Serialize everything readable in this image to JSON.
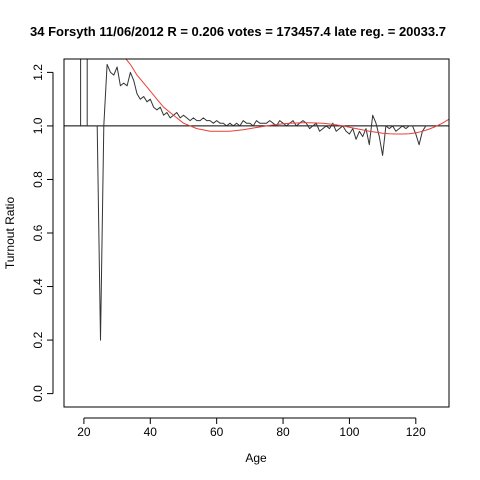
{
  "chart_data": {
    "type": "line",
    "title": "34 Forsyth 11/06/2012 R = 0.206 votes = 173457.4 late reg. = 20033.7",
    "xlabel": "Age",
    "ylabel": "Turnout Ratio",
    "xlim": [
      14,
      130
    ],
    "ylim": [
      -0.05,
      1.25
    ],
    "x_ticks": [
      20,
      40,
      60,
      80,
      100,
      120
    ],
    "x_tick_labels": [
      "20",
      "40",
      "60",
      "80",
      "100",
      "120"
    ],
    "y_ticks": [
      0.0,
      0.2,
      0.4,
      0.6,
      0.8,
      1.0,
      1.2
    ],
    "y_tick_labels": [
      "0.0",
      "0.2",
      "0.4",
      "0.6",
      "0.8",
      "1.0",
      "1.2"
    ],
    "reference_line_y": 1.0,
    "colors": {
      "observed": "#333333",
      "fit": "#e8403a",
      "reference": "#000000",
      "frame": "#000000"
    },
    "series": [
      {
        "role": "observed",
        "x": [
          19,
          19,
          21,
          21,
          22,
          23,
          24,
          25,
          26,
          27,
          28,
          29,
          30,
          31,
          32,
          33,
          34,
          35,
          36,
          37,
          38,
          39,
          40,
          41,
          42,
          43,
          44,
          45,
          46,
          47,
          48,
          49,
          50,
          51,
          52,
          53,
          54,
          55,
          56,
          57,
          58,
          59,
          60,
          61,
          62,
          63,
          64,
          65,
          66,
          67,
          68,
          69,
          70,
          71,
          72,
          73,
          74,
          75,
          76,
          77,
          78,
          79,
          80,
          81,
          82,
          83,
          84,
          85,
          86,
          87,
          88,
          89,
          90,
          91,
          92,
          93,
          94,
          95,
          96,
          97,
          98,
          99,
          100,
          101,
          102,
          103,
          104,
          105,
          106,
          107,
          108,
          109,
          110,
          111,
          112,
          113,
          114,
          115,
          116,
          117,
          118,
          119,
          120,
          121,
          122,
          123,
          124
        ],
        "y": [
          1.0,
          1.6,
          1.6,
          1.0,
          1.0,
          1.0,
          1.0,
          0.2,
          1.0,
          1.23,
          1.2,
          1.19,
          1.22,
          1.15,
          1.16,
          1.15,
          1.2,
          1.17,
          1.12,
          1.1,
          1.11,
          1.09,
          1.1,
          1.07,
          1.06,
          1.07,
          1.04,
          1.05,
          1.03,
          1.04,
          1.05,
          1.03,
          1.04,
          1.03,
          1.02,
          1.03,
          1.02,
          1.02,
          1.03,
          1.02,
          1.02,
          1.01,
          1.02,
          1.01,
          1.01,
          1.0,
          1.01,
          1.0,
          1.01,
          1.0,
          1.02,
          1.01,
          1.01,
          1.0,
          1.02,
          1.01,
          1.01,
          1.01,
          1.02,
          1.01,
          1.0,
          1.02,
          1.01,
          1.0,
          1.01,
          1.02,
          1.0,
          1.01,
          1.02,
          1.01,
          0.99,
          1.0,
          1.01,
          0.98,
          0.99,
          1.0,
          0.99,
          1.01,
          0.98,
          0.99,
          1.0,
          0.98,
          0.97,
          0.99,
          0.95,
          0.98,
          0.96,
          0.99,
          0.93,
          1.04,
          1.01,
          0.96,
          0.89,
          1.0,
          0.99,
          1.0,
          0.98,
          0.99,
          1.0,
          0.99,
          1.0,
          1.0,
          0.97,
          0.93,
          0.98,
          1.0,
          1.0
        ]
      },
      {
        "role": "fit",
        "x": [
          30,
          32,
          34,
          36,
          38,
          40,
          42,
          44,
          46,
          48,
          50,
          52,
          54,
          56,
          58,
          60,
          62,
          64,
          66,
          68,
          70,
          72,
          74,
          76,
          78,
          80,
          82,
          84,
          86,
          88,
          90,
          92,
          94,
          96,
          98,
          100,
          102,
          104,
          106,
          108,
          110,
          112,
          114,
          116,
          118,
          120,
          122,
          124,
          126,
          128,
          130
        ],
        "y": [
          1.29,
          1.26,
          1.23,
          1.19,
          1.16,
          1.13,
          1.1,
          1.07,
          1.05,
          1.03,
          1.01,
          1.0,
          0.99,
          0.985,
          0.98,
          0.98,
          0.98,
          0.98,
          0.983,
          0.986,
          0.99,
          0.994,
          0.998,
          1.002,
          1.005,
          1.008,
          1.01,
          1.011,
          1.012,
          1.012,
          1.011,
          1.01,
          1.007,
          1.004,
          1.0,
          0.995,
          0.99,
          0.985,
          0.98,
          0.976,
          0.973,
          0.971,
          0.97,
          0.97,
          0.971,
          0.974,
          0.98,
          0.988,
          0.998,
          1.01,
          1.025
        ]
      }
    ],
    "grid": false,
    "legend": "none"
  }
}
